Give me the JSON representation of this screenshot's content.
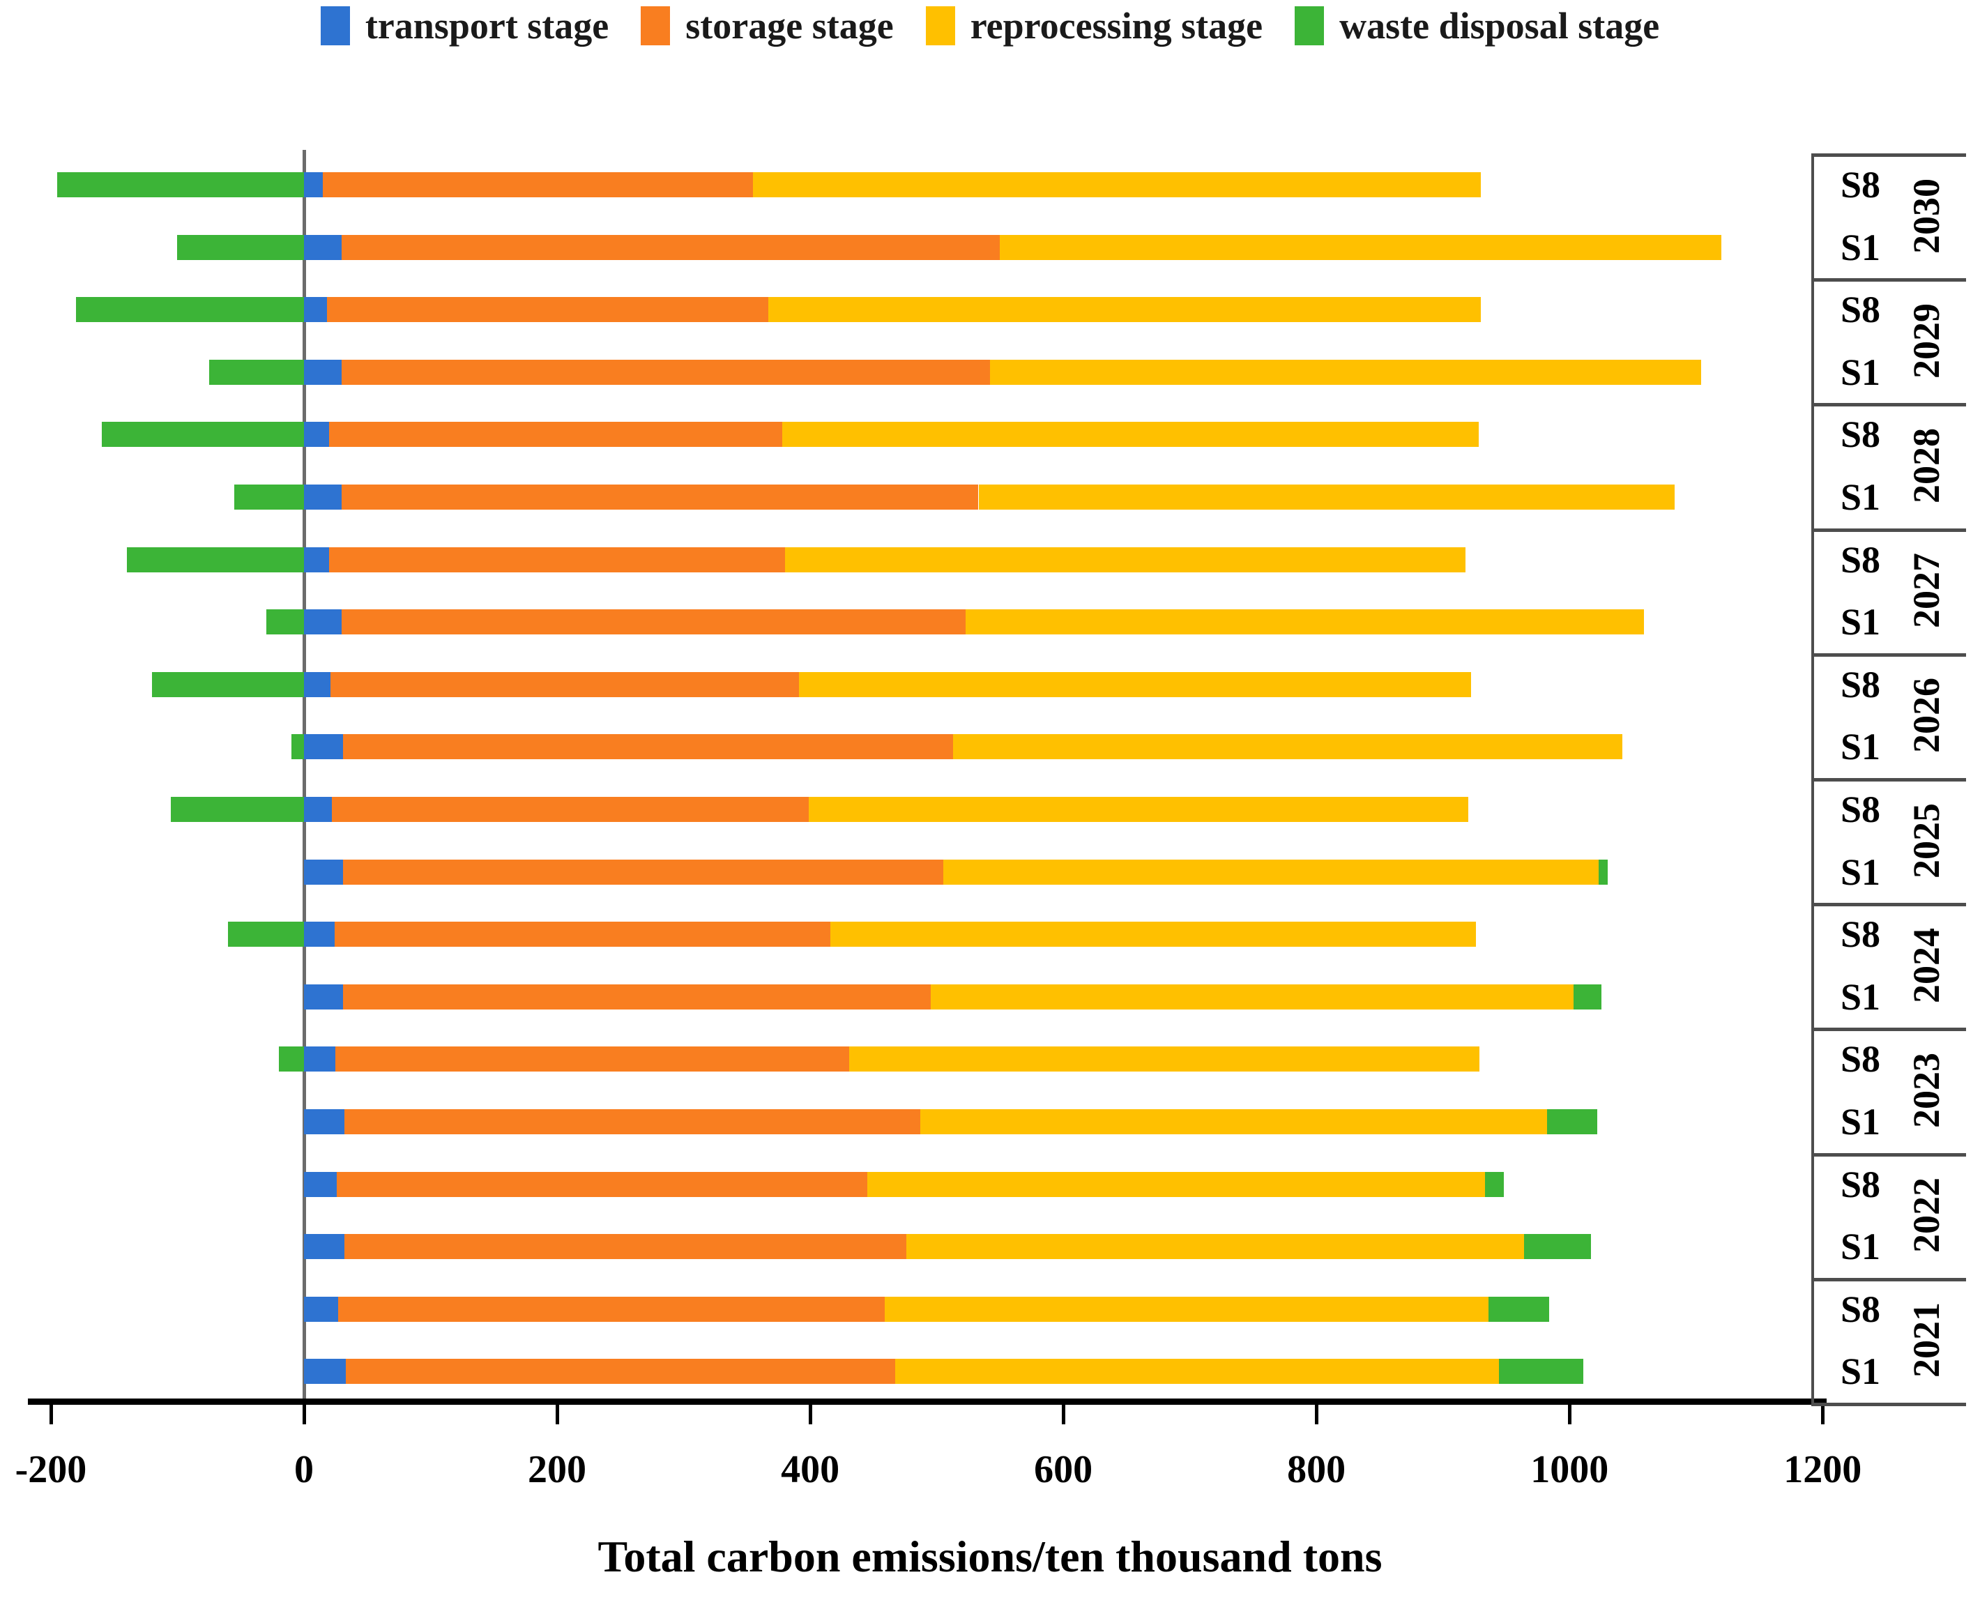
{
  "legend": [
    {
      "name": "transport-stage",
      "label": "transport stage",
      "color": "#2E73D1"
    },
    {
      "name": "storage-stage",
      "label": "storage stage",
      "color": "#F97E20"
    },
    {
      "name": "reprocessing-stage",
      "label": "reprocessing stage",
      "color": "#FFC000"
    },
    {
      "name": "waste-disposal-stage",
      "label": "waste disposal stage",
      "color": "#3CB437"
    }
  ],
  "chart_data": {
    "type": "bar",
    "orientation": "horizontal",
    "stacked": true,
    "title": "",
    "xlabel": "Total carbon emissions/ten thousand tons",
    "ylabel": "",
    "xlim": [
      -220,
      1230
    ],
    "x_ticks": [
      -200,
      0,
      200,
      400,
      600,
      800,
      1000,
      1200
    ],
    "grid": false,
    "legend_position": "top",
    "series_names": [
      "transport stage",
      "storage stage",
      "reprocessing stage",
      "waste disposal stage"
    ],
    "note": "waste_disposal negative values are drawn to the left of zero; positive values are appended at the right end of the stack",
    "groups": [
      {
        "year": "2030",
        "bars": [
          {
            "scenario": "S8",
            "transport": 15,
            "storage": 340,
            "reprocessing": 575,
            "waste_disposal": -195
          },
          {
            "scenario": "S1",
            "transport": 30,
            "storage": 520,
            "reprocessing": 570,
            "waste_disposal": -100
          }
        ]
      },
      {
        "year": "2029",
        "bars": [
          {
            "scenario": "S8",
            "transport": 18,
            "storage": 349,
            "reprocessing": 563,
            "waste_disposal": -180
          },
          {
            "scenario": "S1",
            "transport": 30,
            "storage": 512,
            "reprocessing": 562,
            "waste_disposal": -75
          }
        ]
      },
      {
        "year": "2028",
        "bars": [
          {
            "scenario": "S8",
            "transport": 20,
            "storage": 358,
            "reprocessing": 550,
            "waste_disposal": -160
          },
          {
            "scenario": "S1",
            "transport": 30,
            "storage": 503,
            "reprocessing": 550,
            "waste_disposal": -55
          }
        ]
      },
      {
        "year": "2027",
        "bars": [
          {
            "scenario": "S8",
            "transport": 20,
            "storage": 360,
            "reprocessing": 538,
            "waste_disposal": -140
          },
          {
            "scenario": "S1",
            "transport": 30,
            "storage": 493,
            "reprocessing": 536,
            "waste_disposal": -30
          }
        ]
      },
      {
        "year": "2026",
        "bars": [
          {
            "scenario": "S8",
            "transport": 21,
            "storage": 370,
            "reprocessing": 531,
            "waste_disposal": -120
          },
          {
            "scenario": "S1",
            "transport": 31,
            "storage": 482,
            "reprocessing": 529,
            "waste_disposal": -10
          }
        ]
      },
      {
        "year": "2025",
        "bars": [
          {
            "scenario": "S8",
            "transport": 22,
            "storage": 377,
            "reprocessing": 521,
            "waste_disposal": -105
          },
          {
            "scenario": "S1",
            "transport": 31,
            "storage": 474,
            "reprocessing": 518,
            "waste_disposal": 7
          }
        ]
      },
      {
        "year": "2024",
        "bars": [
          {
            "scenario": "S8",
            "transport": 24,
            "storage": 392,
            "reprocessing": 510,
            "waste_disposal": -60
          },
          {
            "scenario": "S1",
            "transport": 31,
            "storage": 464,
            "reprocessing": 508,
            "waste_disposal": 22
          }
        ]
      },
      {
        "year": "2023",
        "bars": [
          {
            "scenario": "S8",
            "transport": 25,
            "storage": 406,
            "reprocessing": 498,
            "waste_disposal": -20
          },
          {
            "scenario": "S1",
            "transport": 32,
            "storage": 455,
            "reprocessing": 495,
            "waste_disposal": 40
          }
        ]
      },
      {
        "year": "2022",
        "bars": [
          {
            "scenario": "S8",
            "transport": 26,
            "storage": 419,
            "reprocessing": 488,
            "waste_disposal": 15
          },
          {
            "scenario": "S1",
            "transport": 32,
            "storage": 444,
            "reprocessing": 488,
            "waste_disposal": 53
          }
        ]
      },
      {
        "year": "2021",
        "bars": [
          {
            "scenario": "S8",
            "transport": 27,
            "storage": 432,
            "reprocessing": 477,
            "waste_disposal": 48
          },
          {
            "scenario": "S1",
            "transport": 33,
            "storage": 434,
            "reprocessing": 477,
            "waste_disposal": 67
          }
        ]
      }
    ]
  }
}
